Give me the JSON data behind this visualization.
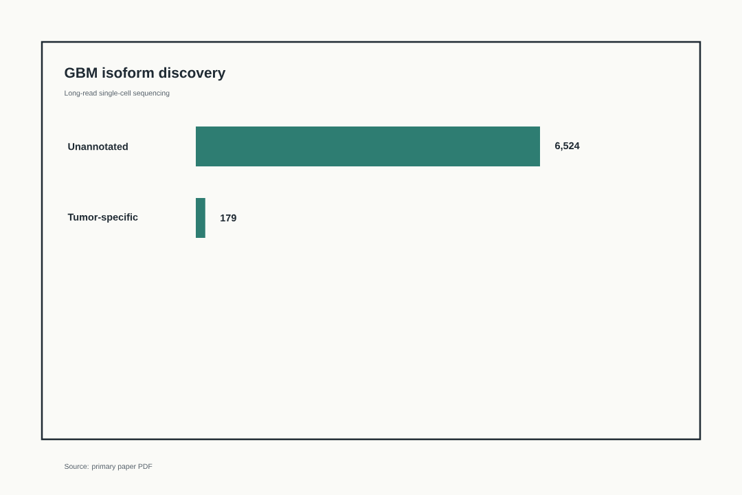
{
  "chart_data": {
    "type": "bar",
    "orientation": "horizontal",
    "title": "GBM isoform discovery",
    "subtitle": "Long-read single-cell sequencing",
    "categories": [
      "Unannotated",
      "Tumor-specific"
    ],
    "values": [
      6524,
      179
    ],
    "color": "#2e7d72",
    "value_labels": [
      "6,524",
      "179"
    ],
    "annotations": [
      "Source: primary paper PDF"
    ]
  }
}
